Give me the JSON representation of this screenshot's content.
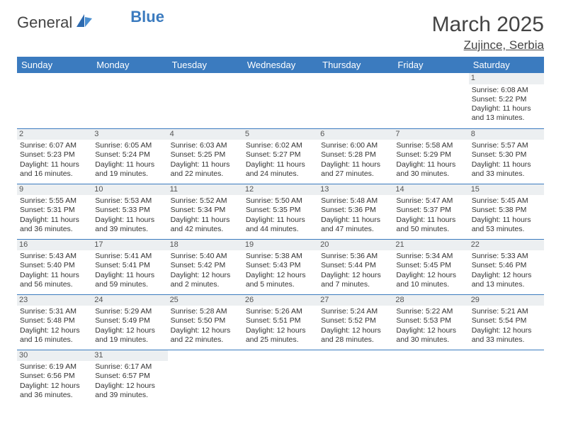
{
  "logo": {
    "text1": "General",
    "text2": "Blue"
  },
  "title": "March 2025",
  "location": "Zujince, Serbia",
  "colors": {
    "header_bg": "#3b7bbf",
    "header_text": "#ffffff",
    "daynum_bg": "#eceff1",
    "border": "#3b7bbf",
    "text": "#333333",
    "background": "#ffffff"
  },
  "weekdays": [
    "Sunday",
    "Monday",
    "Tuesday",
    "Wednesday",
    "Thursday",
    "Friday",
    "Saturday"
  ],
  "weeks": [
    [
      null,
      null,
      null,
      null,
      null,
      null,
      {
        "d": "1",
        "sr": "Sunrise: 6:08 AM",
        "ss": "Sunset: 5:22 PM",
        "dl1": "Daylight: 11 hours",
        "dl2": "and 13 minutes."
      }
    ],
    [
      {
        "d": "2",
        "sr": "Sunrise: 6:07 AM",
        "ss": "Sunset: 5:23 PM",
        "dl1": "Daylight: 11 hours",
        "dl2": "and 16 minutes."
      },
      {
        "d": "3",
        "sr": "Sunrise: 6:05 AM",
        "ss": "Sunset: 5:24 PM",
        "dl1": "Daylight: 11 hours",
        "dl2": "and 19 minutes."
      },
      {
        "d": "4",
        "sr": "Sunrise: 6:03 AM",
        "ss": "Sunset: 5:25 PM",
        "dl1": "Daylight: 11 hours",
        "dl2": "and 22 minutes."
      },
      {
        "d": "5",
        "sr": "Sunrise: 6:02 AM",
        "ss": "Sunset: 5:27 PM",
        "dl1": "Daylight: 11 hours",
        "dl2": "and 24 minutes."
      },
      {
        "d": "6",
        "sr": "Sunrise: 6:00 AM",
        "ss": "Sunset: 5:28 PM",
        "dl1": "Daylight: 11 hours",
        "dl2": "and 27 minutes."
      },
      {
        "d": "7",
        "sr": "Sunrise: 5:58 AM",
        "ss": "Sunset: 5:29 PM",
        "dl1": "Daylight: 11 hours",
        "dl2": "and 30 minutes."
      },
      {
        "d": "8",
        "sr": "Sunrise: 5:57 AM",
        "ss": "Sunset: 5:30 PM",
        "dl1": "Daylight: 11 hours",
        "dl2": "and 33 minutes."
      }
    ],
    [
      {
        "d": "9",
        "sr": "Sunrise: 5:55 AM",
        "ss": "Sunset: 5:31 PM",
        "dl1": "Daylight: 11 hours",
        "dl2": "and 36 minutes."
      },
      {
        "d": "10",
        "sr": "Sunrise: 5:53 AM",
        "ss": "Sunset: 5:33 PM",
        "dl1": "Daylight: 11 hours",
        "dl2": "and 39 minutes."
      },
      {
        "d": "11",
        "sr": "Sunrise: 5:52 AM",
        "ss": "Sunset: 5:34 PM",
        "dl1": "Daylight: 11 hours",
        "dl2": "and 42 minutes."
      },
      {
        "d": "12",
        "sr": "Sunrise: 5:50 AM",
        "ss": "Sunset: 5:35 PM",
        "dl1": "Daylight: 11 hours",
        "dl2": "and 44 minutes."
      },
      {
        "d": "13",
        "sr": "Sunrise: 5:48 AM",
        "ss": "Sunset: 5:36 PM",
        "dl1": "Daylight: 11 hours",
        "dl2": "and 47 minutes."
      },
      {
        "d": "14",
        "sr": "Sunrise: 5:47 AM",
        "ss": "Sunset: 5:37 PM",
        "dl1": "Daylight: 11 hours",
        "dl2": "and 50 minutes."
      },
      {
        "d": "15",
        "sr": "Sunrise: 5:45 AM",
        "ss": "Sunset: 5:38 PM",
        "dl1": "Daylight: 11 hours",
        "dl2": "and 53 minutes."
      }
    ],
    [
      {
        "d": "16",
        "sr": "Sunrise: 5:43 AM",
        "ss": "Sunset: 5:40 PM",
        "dl1": "Daylight: 11 hours",
        "dl2": "and 56 minutes."
      },
      {
        "d": "17",
        "sr": "Sunrise: 5:41 AM",
        "ss": "Sunset: 5:41 PM",
        "dl1": "Daylight: 11 hours",
        "dl2": "and 59 minutes."
      },
      {
        "d": "18",
        "sr": "Sunrise: 5:40 AM",
        "ss": "Sunset: 5:42 PM",
        "dl1": "Daylight: 12 hours",
        "dl2": "and 2 minutes."
      },
      {
        "d": "19",
        "sr": "Sunrise: 5:38 AM",
        "ss": "Sunset: 5:43 PM",
        "dl1": "Daylight: 12 hours",
        "dl2": "and 5 minutes."
      },
      {
        "d": "20",
        "sr": "Sunrise: 5:36 AM",
        "ss": "Sunset: 5:44 PM",
        "dl1": "Daylight: 12 hours",
        "dl2": "and 7 minutes."
      },
      {
        "d": "21",
        "sr": "Sunrise: 5:34 AM",
        "ss": "Sunset: 5:45 PM",
        "dl1": "Daylight: 12 hours",
        "dl2": "and 10 minutes."
      },
      {
        "d": "22",
        "sr": "Sunrise: 5:33 AM",
        "ss": "Sunset: 5:46 PM",
        "dl1": "Daylight: 12 hours",
        "dl2": "and 13 minutes."
      }
    ],
    [
      {
        "d": "23",
        "sr": "Sunrise: 5:31 AM",
        "ss": "Sunset: 5:48 PM",
        "dl1": "Daylight: 12 hours",
        "dl2": "and 16 minutes."
      },
      {
        "d": "24",
        "sr": "Sunrise: 5:29 AM",
        "ss": "Sunset: 5:49 PM",
        "dl1": "Daylight: 12 hours",
        "dl2": "and 19 minutes."
      },
      {
        "d": "25",
        "sr": "Sunrise: 5:28 AM",
        "ss": "Sunset: 5:50 PM",
        "dl1": "Daylight: 12 hours",
        "dl2": "and 22 minutes."
      },
      {
        "d": "26",
        "sr": "Sunrise: 5:26 AM",
        "ss": "Sunset: 5:51 PM",
        "dl1": "Daylight: 12 hours",
        "dl2": "and 25 minutes."
      },
      {
        "d": "27",
        "sr": "Sunrise: 5:24 AM",
        "ss": "Sunset: 5:52 PM",
        "dl1": "Daylight: 12 hours",
        "dl2": "and 28 minutes."
      },
      {
        "d": "28",
        "sr": "Sunrise: 5:22 AM",
        "ss": "Sunset: 5:53 PM",
        "dl1": "Daylight: 12 hours",
        "dl2": "and 30 minutes."
      },
      {
        "d": "29",
        "sr": "Sunrise: 5:21 AM",
        "ss": "Sunset: 5:54 PM",
        "dl1": "Daylight: 12 hours",
        "dl2": "and 33 minutes."
      }
    ],
    [
      {
        "d": "30",
        "sr": "Sunrise: 6:19 AM",
        "ss": "Sunset: 6:56 PM",
        "dl1": "Daylight: 12 hours",
        "dl2": "and 36 minutes."
      },
      {
        "d": "31",
        "sr": "Sunrise: 6:17 AM",
        "ss": "Sunset: 6:57 PM",
        "dl1": "Daylight: 12 hours",
        "dl2": "and 39 minutes."
      },
      null,
      null,
      null,
      null,
      null
    ]
  ]
}
